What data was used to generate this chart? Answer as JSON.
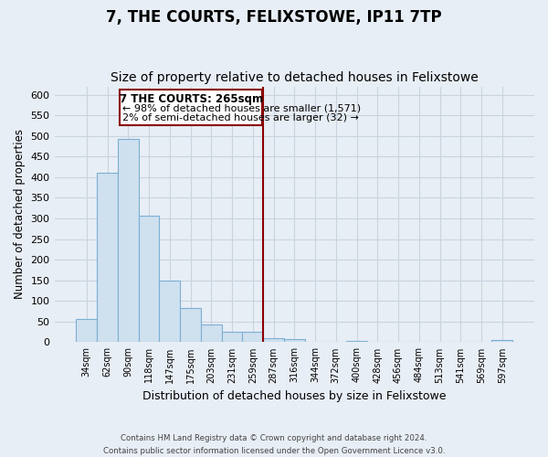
{
  "title": "7, THE COURTS, FELIXSTOWE, IP11 7TP",
  "subtitle": "Size of property relative to detached houses in Felixstowe",
  "xlabel": "Distribution of detached houses by size in Felixstowe",
  "ylabel": "Number of detached properties",
  "bin_labels": [
    "34sqm",
    "62sqm",
    "90sqm",
    "118sqm",
    "147sqm",
    "175sqm",
    "203sqm",
    "231sqm",
    "259sqm",
    "287sqm",
    "316sqm",
    "344sqm",
    "372sqm",
    "400sqm",
    "428sqm",
    "456sqm",
    "484sqm",
    "513sqm",
    "541sqm",
    "569sqm",
    "597sqm"
  ],
  "bar_values": [
    57,
    411,
    493,
    307,
    150,
    82,
    44,
    25,
    25,
    10,
    8,
    0,
    0,
    3,
    0,
    0,
    0,
    0,
    0,
    0,
    5
  ],
  "bar_color": "#cfe0ee",
  "bar_edge_color": "#7bafd4",
  "ylim": [
    0,
    620
  ],
  "yticks": [
    0,
    50,
    100,
    150,
    200,
    250,
    300,
    350,
    400,
    450,
    500,
    550,
    600
  ],
  "vline_color": "#8b0000",
  "annotation_title": "7 THE COURTS: 265sqm",
  "annotation_line1": "← 98% of detached houses are smaller (1,571)",
  "annotation_line2": "2% of semi-detached houses are larger (32) →",
  "annotation_box_color": "#ffffff",
  "annotation_box_edge_color": "#8b0000",
  "footer_line1": "Contains HM Land Registry data © Crown copyright and database right 2024.",
  "footer_line2": "Contains public sector information licensed under the Open Government Licence v3.0.",
  "background_color": "#e8eef5",
  "plot_bg_color": "#e8eef5",
  "grid_color": "#c8d4e0",
  "title_fontsize": 12,
  "subtitle_fontsize": 10,
  "ylabel_fontsize": 8.5,
  "xlabel_fontsize": 9
}
